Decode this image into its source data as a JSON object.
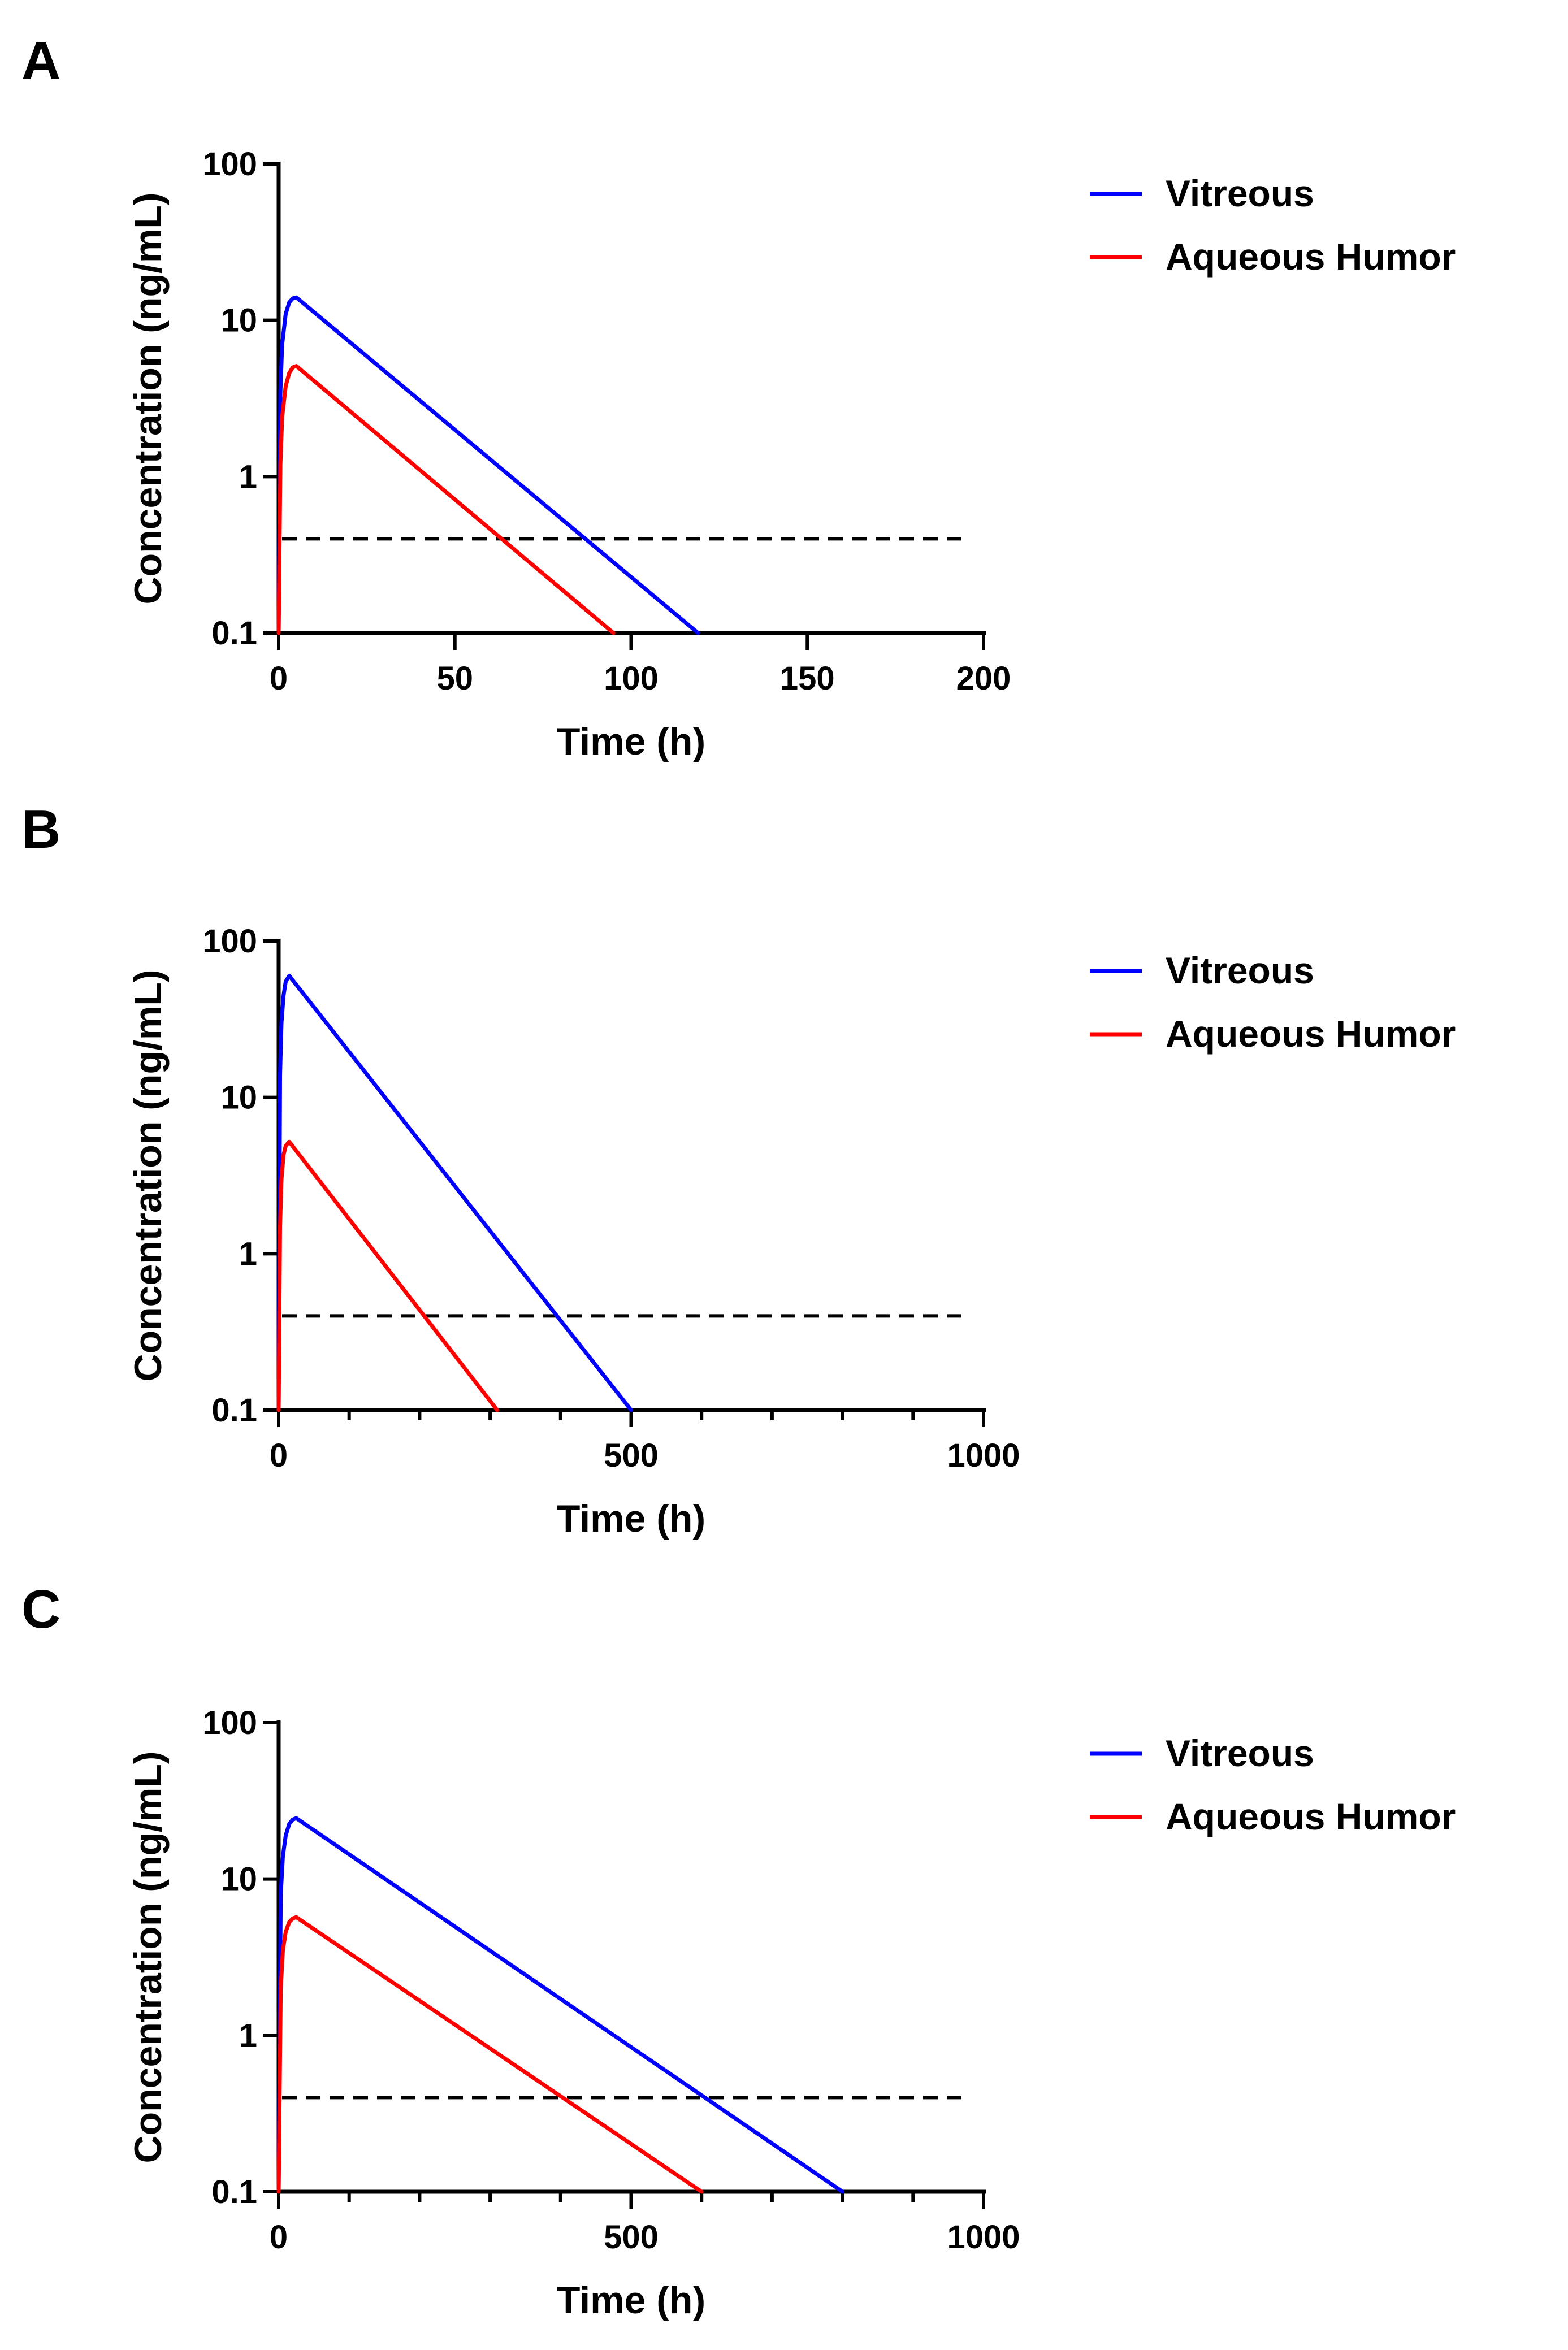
{
  "chart_data": [
    {
      "panel": "A",
      "type": "line",
      "xlabel": "Time (h)",
      "ylabel": "Concentration (ng/mL)",
      "xlim": [
        0,
        200
      ],
      "ylim": [
        0.1,
        100
      ],
      "yscale": "log",
      "x_ticks": [
        0,
        50,
        100,
        150,
        200
      ],
      "x_tick_labels": [
        "0",
        "50",
        "100",
        "150",
        "200"
      ],
      "x_minor_ticks": [],
      "y_ticks": [
        0.1,
        1,
        10,
        100
      ],
      "y_tick_labels": [
        "0.1",
        "1",
        "10",
        "100"
      ],
      "threshold": 0.4,
      "legend_position": "right",
      "series": [
        {
          "name": "Vitreous",
          "color": "#0000ff",
          "x": [
            0,
            0.5,
            1,
            2,
            3,
            4,
            5,
            119
          ],
          "y": [
            0.1,
            3.5,
            7,
            11,
            13,
            13.8,
            14,
            0.1
          ]
        },
        {
          "name": "Aqueous Humor",
          "color": "#ff0000",
          "x": [
            0,
            0.5,
            1,
            2,
            3,
            4,
            5,
            95
          ],
          "y": [
            0.1,
            1.2,
            2.4,
            3.8,
            4.6,
            5,
            5.1,
            0.1
          ]
        }
      ]
    },
    {
      "panel": "B",
      "type": "line",
      "xlabel": "Time (h)",
      "ylabel": "Concentration (ng/mL)",
      "xlim": [
        0,
        1000
      ],
      "ylim": [
        0.1,
        100
      ],
      "yscale": "log",
      "x_ticks": [
        0,
        500,
        1000
      ],
      "x_tick_labels": [
        "0",
        "500",
        "1000"
      ],
      "x_minor_ticks": [
        100,
        200,
        300,
        400,
        600,
        700,
        800,
        900
      ],
      "y_ticks": [
        0.1,
        1,
        10,
        100
      ],
      "y_tick_labels": [
        "0.1",
        "1",
        "10",
        "100"
      ],
      "threshold": 0.4,
      "legend_position": "right",
      "series": [
        {
          "name": "Vitreous",
          "color": "#0000ff",
          "x": [
            0,
            2,
            4,
            7,
            10,
            15,
            500
          ],
          "y": [
            0.1,
            14,
            30,
            45,
            55,
            60,
            0.1
          ]
        },
        {
          "name": "Aqueous Humor",
          "color": "#ff0000",
          "x": [
            0,
            2,
            4,
            7,
            10,
            15,
            310
          ],
          "y": [
            0.1,
            1.5,
            3,
            4.3,
            4.9,
            5.2,
            0.1
          ]
        }
      ]
    },
    {
      "panel": "C",
      "type": "line",
      "xlabel": "Time (h)",
      "ylabel": "Concentration (ng/mL)",
      "xlim": [
        0,
        1000
      ],
      "ylim": [
        0.1,
        100
      ],
      "yscale": "log",
      "x_ticks": [
        0,
        500,
        1000
      ],
      "x_tick_labels": [
        "0",
        "500",
        "1000"
      ],
      "x_minor_ticks": [
        100,
        200,
        300,
        400,
        600,
        700,
        800,
        900
      ],
      "y_ticks": [
        0.1,
        1,
        10,
        100
      ],
      "y_tick_labels": [
        "0.1",
        "1",
        "10",
        "100"
      ],
      "threshold": 0.4,
      "legend_position": "right",
      "series": [
        {
          "name": "Vitreous",
          "color": "#0000ff",
          "x": [
            0,
            3,
            6,
            10,
            15,
            20,
            25,
            800
          ],
          "y": [
            0.1,
            8,
            14,
            19,
            22.5,
            24,
            24.5,
            0.1
          ]
        },
        {
          "name": "Aqueous Humor",
          "color": "#ff0000",
          "x": [
            0,
            3,
            6,
            10,
            15,
            20,
            25,
            600
          ],
          "y": [
            0.1,
            2,
            3.5,
            4.6,
            5.3,
            5.6,
            5.7,
            0.1
          ]
        }
      ]
    }
  ]
}
